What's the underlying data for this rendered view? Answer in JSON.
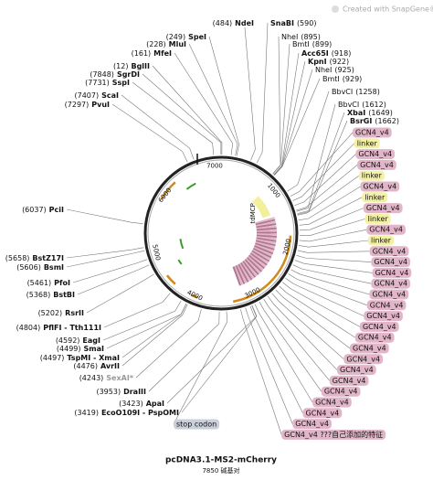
{
  "watermark": "Created with SnapGene®",
  "title": "pcDNA3.1-MS2-mCherry",
  "subtitle": "7850 碱基对",
  "ring_labels": [
    "1000",
    "2000",
    "3000",
    "4000",
    "5000",
    "6000",
    "7000"
  ],
  "inner_feature": "tdMCP",
  "left_enzymes": [
    {
      "position": "(484)",
      "name": "NdeI",
      "bold": true
    },
    {
      "position": "(249)",
      "name": "SpeI",
      "bold": true
    },
    {
      "position": "(228)",
      "name": "MluI",
      "bold": true
    },
    {
      "position": "(161)",
      "name": "MfeI",
      "bold": true
    },
    {
      "position": "(12)",
      "name": "BglII",
      "bold": true
    },
    {
      "position": "(7848)",
      "name": "SgrDI",
      "bold": true
    },
    {
      "position": "(7731)",
      "name": "SspI",
      "bold": true
    },
    {
      "position": "(7407)",
      "name": "ScaI",
      "bold": true
    },
    {
      "position": "(7297)",
      "name": "PvuI",
      "bold": true
    },
    {
      "position": "(6037)",
      "name": "PciI",
      "bold": true
    },
    {
      "position": "(5658)",
      "name": "BstZ17I",
      "bold": true
    },
    {
      "position": "(5606)",
      "name": "BsmI",
      "bold": true
    },
    {
      "position": "(5461)",
      "name": "PfoI",
      "bold": true
    },
    {
      "position": "(5368)",
      "name": "BstBI",
      "bold": true
    },
    {
      "position": "(5202)",
      "name": "RsrII",
      "bold": true
    },
    {
      "position": "(4804)",
      "name": "PflFI - Tth111I",
      "bold": true
    },
    {
      "position": "(4592)",
      "name": "EagI",
      "bold": true
    },
    {
      "position": "(4499)",
      "name": "SmaI",
      "bold": true
    },
    {
      "position": "(4497)",
      "name": "TspMI - XmaI",
      "bold": true
    },
    {
      "position": "(4476)",
      "name": "AvrII",
      "bold": true
    },
    {
      "position": "(4243)",
      "name": "SexAI*",
      "bold": true,
      "color": "#999999"
    },
    {
      "position": "(3953)",
      "name": "DraIII",
      "bold": true
    },
    {
      "position": "(3423)",
      "name": "ApaI",
      "bold": true
    },
    {
      "position": "(3419)",
      "name": "EcoO109I - PspOMI",
      "bold": true
    }
  ],
  "right_enzymes": [
    {
      "name": "SnaBI",
      "position": "(590)",
      "bold": true
    },
    {
      "name": "NheI",
      "position": "(895)",
      "bold": false
    },
    {
      "name": "BmtI",
      "position": "(899)",
      "bold": false
    },
    {
      "name": "Acc65I",
      "position": "(918)",
      "bold": true
    },
    {
      "name": "KpnI",
      "position": "(922)",
      "bold": true
    },
    {
      "name": "NheI",
      "position": "(925)",
      "bold": false
    },
    {
      "name": "BmtI",
      "position": "(929)",
      "bold": false
    },
    {
      "name": "BbvCI",
      "position": "(1258)",
      "bold": false
    },
    {
      "name": "BbvCI",
      "position": "(1612)",
      "bold": false
    },
    {
      "name": "XbaI",
      "position": "(1649)",
      "bold": true
    },
    {
      "name": "BsrGI",
      "position": "(1662)",
      "bold": true
    }
  ],
  "features": [
    {
      "label": "GCN4_v4",
      "color": "#e2b6c8"
    },
    {
      "label": "linker",
      "color": "#f3f1a6"
    },
    {
      "label": "GCN4_v4",
      "color": "#e2b6c8"
    },
    {
      "label": "GCN4_v4",
      "color": "#e2b6c8"
    },
    {
      "label": "linker",
      "color": "#f3f1a6"
    },
    {
      "label": "GCN4_v4",
      "color": "#e2b6c8"
    },
    {
      "label": "linker",
      "color": "#f3f1a6"
    },
    {
      "label": "GCN4_v4",
      "color": "#e2b6c8"
    },
    {
      "label": "linker",
      "color": "#f3f1a6"
    },
    {
      "label": "GCN4_v4",
      "color": "#e2b6c8"
    },
    {
      "label": "linker",
      "color": "#f3f1a6"
    },
    {
      "label": "GCN4_v4",
      "color": "#e2b6c8"
    },
    {
      "label": "GCN4_v4",
      "color": "#e2b6c8"
    },
    {
      "label": "GCN4_v4",
      "color": "#e2b6c8"
    },
    {
      "label": "GCN4_v4",
      "color": "#e2b6c8"
    },
    {
      "label": "GCN4_v4",
      "color": "#e2b6c8"
    },
    {
      "label": "GCN4_v4",
      "color": "#e2b6c8"
    },
    {
      "label": "GCN4_v4",
      "color": "#e2b6c8"
    },
    {
      "label": "GCN4_v4",
      "color": "#e2b6c8"
    },
    {
      "label": "GCN4_v4",
      "color": "#e2b6c8"
    },
    {
      "label": "GCN4_v4",
      "color": "#e2b6c8"
    },
    {
      "label": "GCN4_v4",
      "color": "#e2b6c8"
    },
    {
      "label": "GCN4_v4",
      "color": "#e2b6c8"
    },
    {
      "label": "GCN4_v4",
      "color": "#e2b6c8"
    },
    {
      "label": "GCN4_v4",
      "color": "#e2b6c8"
    },
    {
      "label": "GCN4_v4",
      "color": "#e2b6c8"
    },
    {
      "label": "GCN4_v4",
      "color": "#e2b6c8"
    },
    {
      "label": "GCN4_v4",
      "color": "#e2b6c8"
    },
    {
      "label": "GCN4_v4 ???自己添加的特征",
      "color": "#e2b6c8"
    }
  ],
  "stop_label": {
    "label": "stop codon",
    "color": "#c9d0d8"
  }
}
